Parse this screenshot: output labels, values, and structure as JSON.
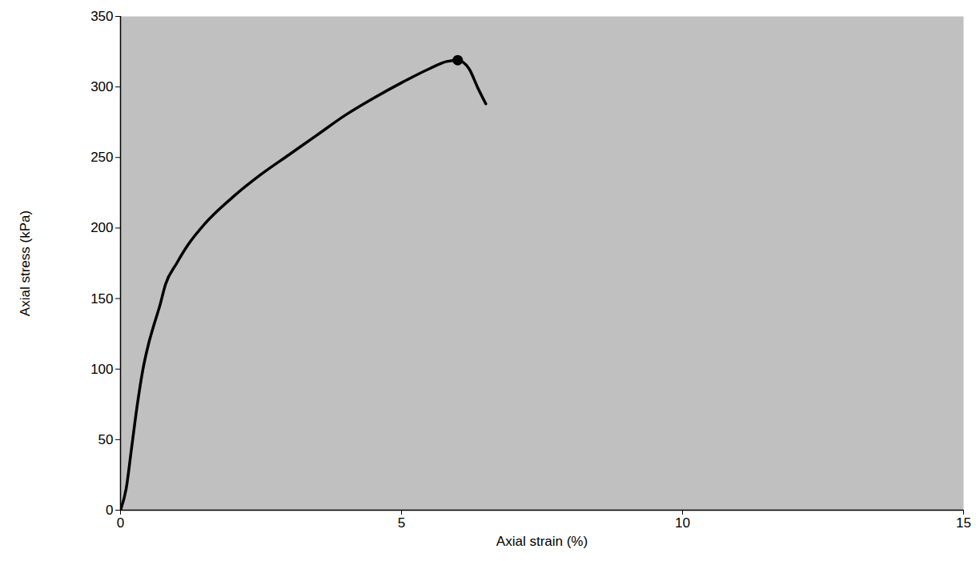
{
  "chart_data": {
    "type": "line",
    "x_label": "Axial strain (%)",
    "y_label": "Axial stress (kPa)",
    "x": [
      0,
      0.1,
      0.2,
      0.3,
      0.4,
      0.5,
      0.6,
      0.7,
      0.8,
      1.0,
      1.2,
      1.5,
      2.0,
      2.5,
      3.0,
      3.5,
      4.0,
      4.5,
      5.0,
      5.5,
      5.8,
      6.0,
      6.2,
      6.35,
      6.5
    ],
    "values": [
      0,
      15,
      45,
      75,
      100,
      118,
      132,
      145,
      160,
      175,
      188,
      203,
      222,
      238,
      252,
      266,
      280,
      292,
      303,
      313,
      318,
      319,
      313,
      300,
      288
    ],
    "color": "#000000",
    "peak": {
      "x": 6.0,
      "y": 319
    },
    "xlim": [
      0,
      15
    ],
    "xticks": [
      0,
      5,
      10,
      15
    ],
    "ylim": [
      0,
      350
    ],
    "yticks": [
      0,
      50,
      100,
      150,
      200,
      250,
      300,
      350
    ],
    "grid": false
  }
}
